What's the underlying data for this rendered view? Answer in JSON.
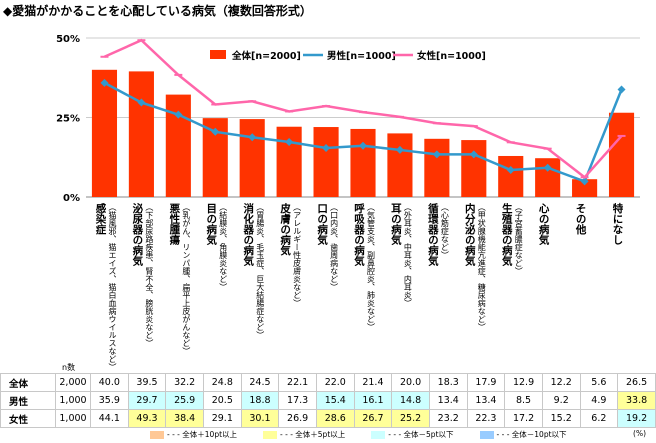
{
  "title": "◆愛猫がかかることを心配している病気（複数回答形式）",
  "chart_data": {
    "type": "bar",
    "ylim": [
      0,
      50
    ],
    "yticks": [
      "0%",
      "25%",
      "50%"
    ],
    "categories": [
      {
        "name": "感染症",
        "sub": "（猫風邪、猫エイズ、猫白血病ウイルスなど）"
      },
      {
        "name": "泌尿器の病気",
        "sub": "（下部尿路疾患、腎不全、膀胱炎など）"
      },
      {
        "name": "悪性腫瘍",
        "sub": "（乳がん、リンパ腫、扁平上皮がんなど）"
      },
      {
        "name": "目の病気",
        "sub": "（結膜炎、角膜炎など）"
      },
      {
        "name": "消化器の病気",
        "sub": "（胃腸炎、毛玉症、巨大結腸症など）"
      },
      {
        "name": "皮膚の病気",
        "sub": "（アレルギー性皮膚炎など）"
      },
      {
        "name": "口の病気",
        "sub": "（口内炎、歯周病など）"
      },
      {
        "name": "呼吸器の病気",
        "sub": "（気管支炎、副鼻腔炎、肺炎など）"
      },
      {
        "name": "耳の病気",
        "sub": "（外耳炎、中耳炎、内耳炎）"
      },
      {
        "name": "循環器の病気",
        "sub": "（心筋症など）"
      },
      {
        "name": "内分泌の病気",
        "sub": "（甲状腺機能亢進症、糖尿病など）"
      },
      {
        "name": "生殖器の病気",
        "sub": "（子宮蓄膿症など）"
      },
      {
        "name": "心の病気",
        "sub": ""
      },
      {
        "name": "その他",
        "sub": ""
      },
      {
        "name": "特になし",
        "sub": ""
      }
    ],
    "series": [
      {
        "name": "全体[n=2000]",
        "kind": "bar",
        "color": "#ff3300",
        "n": "2,000",
        "values": [
          40.0,
          39.5,
          32.2,
          24.8,
          24.5,
          22.1,
          22.0,
          21.4,
          20.0,
          18.3,
          17.9,
          12.9,
          12.2,
          5.6,
          26.5
        ]
      },
      {
        "name": "男性[n=1000]",
        "kind": "line",
        "color": "#3399cc",
        "n": "1,000",
        "values": [
          35.9,
          29.7,
          25.9,
          20.5,
          18.8,
          17.3,
          15.4,
          16.1,
          14.8,
          13.4,
          13.4,
          8.5,
          9.2,
          4.9,
          33.8
        ]
      },
      {
        "name": "女性[n=1000]",
        "kind": "line",
        "color": "#ff66aa",
        "n": "1,000",
        "values": [
          44.1,
          49.3,
          38.4,
          29.1,
          30.1,
          26.9,
          28.6,
          26.7,
          25.2,
          23.2,
          22.3,
          17.2,
          15.2,
          6.2,
          19.2
        ]
      }
    ],
    "table_rows": [
      "全体",
      "男性",
      "女性"
    ],
    "n_header": "n数",
    "highlight": {
      "男性": [
        "",
        "lo5",
        "lo5",
        "",
        "lo5",
        "",
        "lo5",
        "lo5",
        "lo5",
        "",
        "",
        "",
        "",
        "",
        "hi5"
      ],
      "女性": [
        "",
        "hi5",
        "hi5",
        "",
        "hi5",
        "",
        "hi5",
        "hi5",
        "hi5",
        "",
        "",
        "",
        "",
        "",
        "lo5"
      ]
    },
    "legend2": [
      {
        "label": "全体＋10pt以上",
        "color": "#ffc896"
      },
      {
        "label": "全体＋5pt以上",
        "color": "#ffff99"
      },
      {
        "label": "全体－5pt以下",
        "color": "#ccffff"
      },
      {
        "label": "全体－10pt以下",
        "color": "#99ccff"
      }
    ],
    "unit": "(%)"
  }
}
